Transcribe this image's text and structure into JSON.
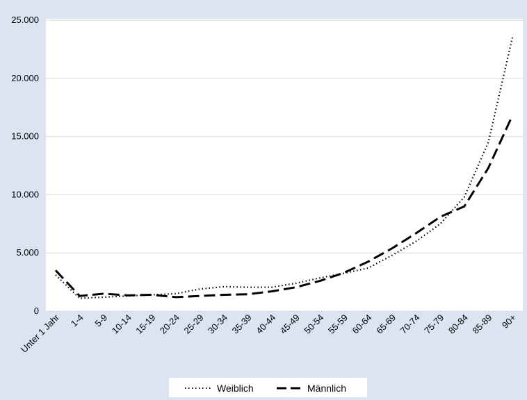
{
  "chart_data": {
    "type": "line",
    "title": "",
    "xlabel": "",
    "ylabel": "",
    "categories": [
      "Unter 1 Jahr",
      "1-4",
      "5-9",
      "10-14",
      "15-19",
      "20-24",
      "25-29",
      "30-34",
      "35-39",
      "40-44",
      "45-49",
      "50-54",
      "55-59",
      "60-64",
      "65-69",
      "70-74",
      "75-79",
      "80-84",
      "85-89",
      "90+"
    ],
    "yticks": [
      "0",
      "5.000",
      "10.000",
      "15.000",
      "20.000",
      "25.000"
    ],
    "ylim": [
      0,
      25000
    ],
    "grid": true,
    "legend_position": "bottom",
    "series": [
      {
        "name": "Weiblich",
        "style": "dotted",
        "values": [
          3100,
          1100,
          1200,
          1300,
          1400,
          1500,
          1900,
          2100,
          2050,
          2050,
          2400,
          2850,
          3250,
          3700,
          4800,
          6000,
          7500,
          9800,
          14500,
          23500
        ]
      },
      {
        "name": "Männlich",
        "style": "dashed",
        "values": [
          3500,
          1300,
          1500,
          1350,
          1400,
          1200,
          1300,
          1400,
          1450,
          1700,
          2050,
          2600,
          3300,
          4250,
          5400,
          6700,
          8100,
          9000,
          12300,
          16800
        ]
      }
    ]
  }
}
